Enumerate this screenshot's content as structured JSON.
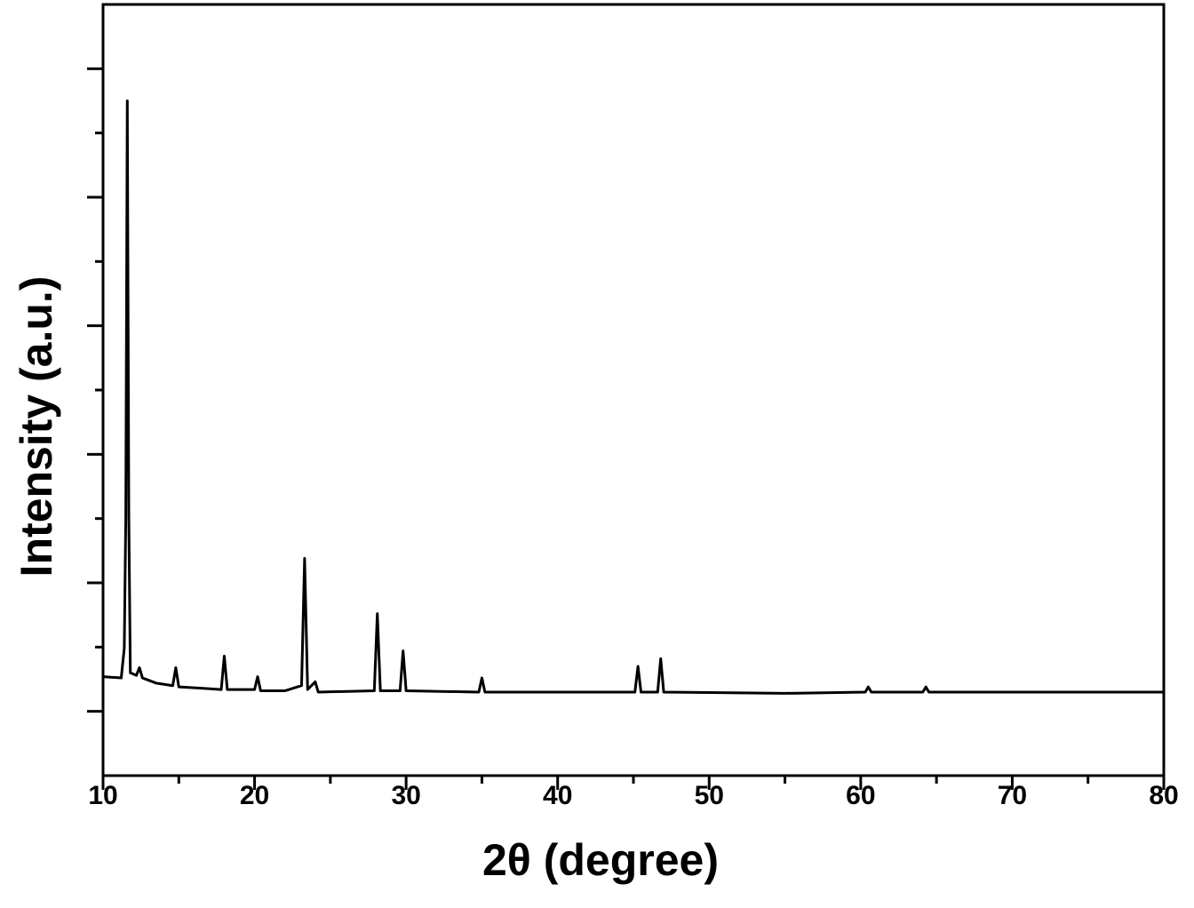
{
  "chart_data": {
    "type": "line",
    "x_label": "2θ (degree)",
    "y_label": "Intensity (a.u.)",
    "xlim": [
      10,
      80
    ],
    "xticks": [
      10,
      20,
      30,
      40,
      50,
      60,
      70,
      80
    ],
    "xminorticks": [
      15,
      25,
      35,
      45,
      55,
      65,
      75
    ],
    "ylim": [
      0,
      6
    ],
    "yticks": [
      0.5,
      1.5,
      2.5,
      3.5,
      4.5,
      5.5
    ],
    "yminorticks": [
      1,
      2,
      3,
      4,
      5
    ],
    "grid": false,
    "series": [
      {
        "color": "#000000",
        "x": [
          10,
          11.2,
          11.4,
          11.5,
          11.6,
          11.7,
          11.8,
          12.2,
          12.4,
          12.6,
          13.5,
          14.6,
          14.8,
          15.0,
          16.5,
          17.8,
          18.0,
          18.2,
          20.0,
          20.2,
          20.4,
          22.0,
          23.1,
          23.3,
          23.5,
          24.0,
          24.2,
          27.9,
          28.1,
          28.3,
          29.6,
          29.8,
          30.0,
          34.8,
          35.0,
          35.2,
          45.1,
          45.3,
          45.5,
          46.6,
          46.8,
          47.0,
          55,
          60.3,
          60.5,
          60.7,
          64.1,
          64.3,
          64.5,
          80
        ],
        "values": [
          0.77,
          0.76,
          0.99,
          2.0,
          5.25,
          2.0,
          0.8,
          0.78,
          0.84,
          0.76,
          0.72,
          0.7,
          0.84,
          0.69,
          0.68,
          0.67,
          0.93,
          0.67,
          0.67,
          0.77,
          0.66,
          0.66,
          0.7,
          1.69,
          0.67,
          0.73,
          0.65,
          0.66,
          1.26,
          0.66,
          0.66,
          0.97,
          0.66,
          0.65,
          0.76,
          0.65,
          0.65,
          0.85,
          0.65,
          0.65,
          0.91,
          0.65,
          0.64,
          0.65,
          0.69,
          0.65,
          0.65,
          0.69,
          0.65,
          0.65
        ]
      }
    ]
  }
}
